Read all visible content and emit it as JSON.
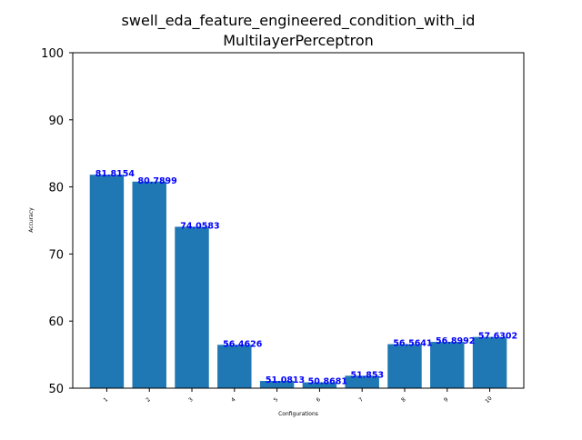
{
  "chart_data": {
    "type": "bar",
    "title": "swell_eda_feature_engineered_condition_with_id",
    "subtitle": "MultilayerPerceptron",
    "xlabel": "Configurations",
    "ylabel": "Accuracy",
    "categories": [
      "1",
      "2",
      "3",
      "4",
      "5",
      "6",
      "7",
      "8",
      "9",
      "10"
    ],
    "values": [
      81.8154,
      80.7899,
      74.0583,
      56.4626,
      51.0813,
      50.8681,
      51.853,
      56.5641,
      56.8992,
      57.6302
    ],
    "data_labels": [
      "81.8154",
      "80.7899",
      "74.0583",
      "56.4626",
      "51.0813",
      "50.8681",
      "51.853",
      "56.5641",
      "56.8992",
      "57.6302"
    ],
    "ylim": [
      50,
      100
    ],
    "yticks": [
      "50",
      "60",
      "70",
      "80",
      "90",
      "100"
    ],
    "grid": false,
    "legend": "none",
    "colors": {
      "bar": "#1f77b4",
      "data_label": "#0000ff",
      "axis": "#000000"
    }
  }
}
